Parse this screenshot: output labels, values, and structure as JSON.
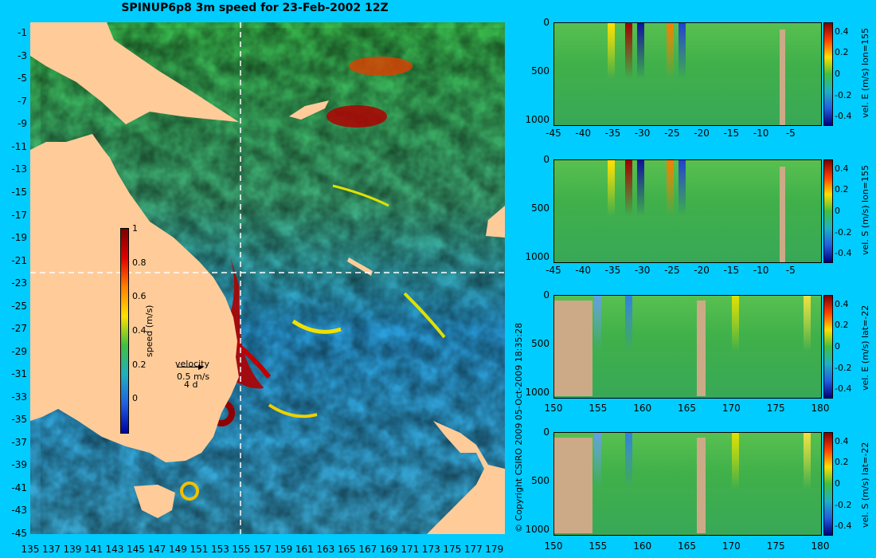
{
  "title": "SPINUP6p8 3m speed for 23-Feb-2002 12Z",
  "copyright": "© Copyright CSIRO 2009   05-Oct-2009 18:35:28",
  "map": {
    "lat_ticks": [
      "-1",
      "-3",
      "-5",
      "-7",
      "-9",
      "-11",
      "-13",
      "-15",
      "-17",
      "-19",
      "-21",
      "-23",
      "-25",
      "-27",
      "-29",
      "-31",
      "-33",
      "-35",
      "-37",
      "-39",
      "-41",
      "-43",
      "-45"
    ],
    "lon_ticks": [
      "135",
      "137",
      "139",
      "141",
      "143",
      "145",
      "147",
      "149",
      "151",
      "153",
      "155",
      "157",
      "159",
      "161",
      "163",
      "165",
      "167",
      "169",
      "171",
      "173",
      "175",
      "177",
      "179"
    ],
    "colorbar": {
      "label": "speed (m/s)",
      "ticks": [
        "1",
        "0.8",
        "0.6",
        "0.4",
        "0.2",
        "0"
      ]
    },
    "velocity_key": {
      "title": "velocity",
      "speed": "0.5 m/s",
      "time": "4 d"
    },
    "colors": {
      "ocean": "#2ea8e8",
      "land": "#ffcc99",
      "background": "#00ccff"
    }
  },
  "chart_data": [
    {
      "type": "heatmap",
      "title": "SPINUP6p8 3m speed for 23-Feb-2002 12Z",
      "xlabel": "",
      "ylabel": "",
      "xlim": [
        135,
        180
      ],
      "ylim": [
        -45,
        0
      ],
      "colorbar_label": "speed (m/s)",
      "colorbar_range": [
        0,
        1
      ],
      "crosshair": {
        "lon": 155,
        "lat": -22
      }
    },
    {
      "type": "heatmap",
      "colorbar_label": "vel. E (m/s) lon=155",
      "x_ticks": [
        "-45",
        "-40",
        "-35",
        "-30",
        "-25",
        "-20",
        "-15",
        "-10",
        "-5"
      ],
      "y_ticks": [
        "0",
        "500",
        "1000"
      ],
      "colorbar_ticks": [
        "0.4",
        "0.2",
        "0",
        "-0.2",
        "-0.4"
      ],
      "xlim": [
        -45,
        0
      ],
      "ylim": [
        1050,
        0
      ]
    },
    {
      "type": "heatmap",
      "colorbar_label": "vel. S (m/s) lon=155",
      "x_ticks": [
        "-45",
        "-40",
        "-35",
        "-30",
        "-25",
        "-20",
        "-15",
        "-10",
        "-5"
      ],
      "y_ticks": [
        "0",
        "500",
        "1000"
      ],
      "colorbar_ticks": [
        "0.4",
        "0.2",
        "0",
        "-0.2",
        "-0.4"
      ],
      "xlim": [
        -45,
        0
      ],
      "ylim": [
        1050,
        0
      ]
    },
    {
      "type": "heatmap",
      "colorbar_label": "vel. E (m/s) lat=-22",
      "x_ticks": [
        "150",
        "155",
        "160",
        "165",
        "170",
        "175",
        "180"
      ],
      "y_ticks": [
        "0",
        "500",
        "1000"
      ],
      "colorbar_ticks": [
        "0.4",
        "0.2",
        "0",
        "-0.2",
        "-0.4"
      ],
      "xlim": [
        150,
        180
      ],
      "ylim": [
        1050,
        0
      ]
    },
    {
      "type": "heatmap",
      "colorbar_label": "vel. S (m/s) lat=-22",
      "x_ticks": [
        "150",
        "155",
        "160",
        "165",
        "170",
        "175",
        "180"
      ],
      "y_ticks": [
        "0",
        "500",
        "1000"
      ],
      "colorbar_ticks": [
        "0.4",
        "0.2",
        "0",
        "-0.2",
        "-0.4"
      ],
      "xlim": [
        150,
        180
      ],
      "ylim": [
        1050,
        0
      ]
    }
  ]
}
